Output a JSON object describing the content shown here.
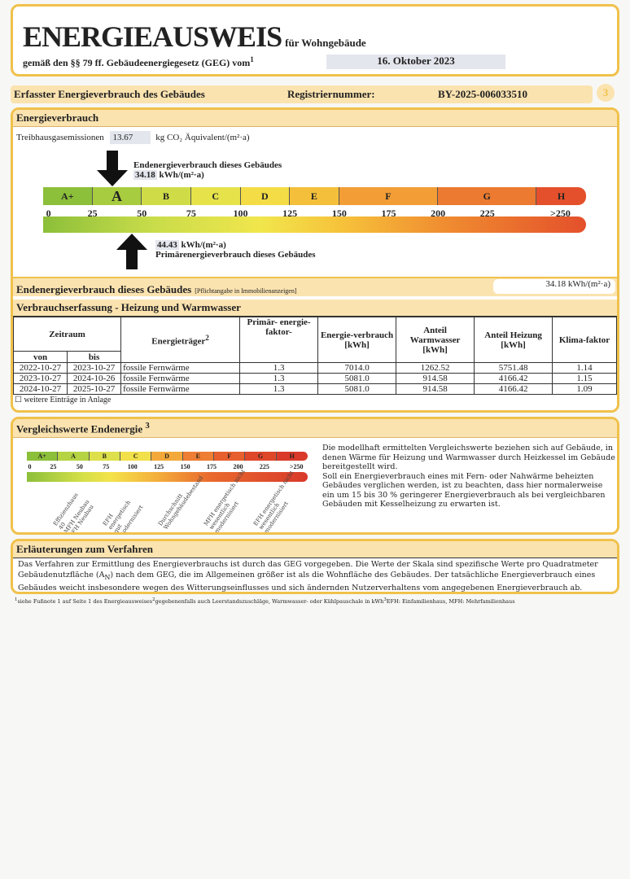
{
  "header": {
    "title": "ENERGIEAUSWEIS",
    "subtitle": "für Wohngebäude",
    "law": "gemäß den §§ 79 ff. Gebäudeenergiegesetz (GEG) vom",
    "law_sup": "1",
    "date": "16. Oktober 2023"
  },
  "bar": {
    "label": "Erfasster Energieverbrauch des Gebäudes",
    "reg_label": "Registriernummer:",
    "reg_value": "BY-2025-006033510",
    "page": "3"
  },
  "energy": {
    "title": "Energieverbrauch",
    "ghg_label": "Treibhausgasemissionen",
    "ghg_value": "13.67",
    "ghg_unit": "kg CO₂ Äquivalent/(m²·a)",
    "end_label": "Endenergieverbrauch dieses Gebäudes",
    "end_value": "34.18",
    "unit": "kWh/(m²·a)",
    "prim_value": "44.43",
    "prim_label": "Primärenergieverbrauch dieses Gebäudes",
    "classes": [
      "A+",
      "A",
      "B",
      "C",
      "D",
      "E",
      "F",
      "G",
      "H"
    ],
    "highlight_class": "A",
    "class_colors": [
      "#8cbf3a",
      "#a8cc3f",
      "#cfdc48",
      "#e6e24a",
      "#f3dc45",
      "#f4c03b",
      "#f29d36",
      "#ec7a30",
      "#e4502b"
    ],
    "ticks": [
      "0",
      "25",
      "50",
      "75",
      "100",
      "125",
      "150",
      "175",
      "200",
      "225",
      ">250"
    ],
    "end_energy_kwh": 34.18,
    "primary_energy_kwh": 44.43
  },
  "summary": {
    "label": "Endenergieverbrauch dieses Gebäudes",
    "note": "[Pflichtangabe in Immobilienanzeigen]",
    "value": "34.18 kWh/(m²·a)"
  },
  "consumption": {
    "title": "Verbrauchserfassung - Heizung und Warmwasser",
    "headers": {
      "period": "Zeitraum",
      "from": "von",
      "to": "bis",
      "carrier": "Energieträger",
      "carrier_sup": "2",
      "factor": "Primär- energie-faktor-",
      "consumption": "Energie-verbrauch [kWh]",
      "water": "Anteil Warmwasser [kWh]",
      "heating": "Anteil Heizung [kWh]",
      "climate": "Klima-faktor"
    },
    "rows": [
      [
        "2022-10-27",
        "2023-10-27",
        "fossile Fernwärme",
        "1.3",
        "7014.0",
        "1262.52",
        "5751.48",
        "1.14"
      ],
      [
        "2023-10-27",
        "2024-10-26",
        "fossile Fernwärme",
        "1.3",
        "5081.0",
        "914.58",
        "4166.42",
        "1.15"
      ],
      [
        "2024-10-27",
        "2025-10-27",
        "fossile Fernwärme",
        "1.3",
        "5081.0",
        "914.58",
        "4166.42",
        "1.09"
      ]
    ],
    "more": "☐ weitere Einträge in Anlage"
  },
  "comparison": {
    "title": "Vergleichswerte Endenergie",
    "title_sup": "3",
    "class_colors": [
      "#8cbf3a",
      "#b5d343",
      "#dde04a",
      "#f2e04a",
      "#f3a93a",
      "#ee7e33",
      "#e85f2e",
      "#df472b",
      "#d93a2a"
    ],
    "labels": [
      {
        "value": 25,
        "text": "Effizienzhaus\n40\nMFH Neubau\nEFH Neubau"
      },
      {
        "value": 75,
        "text": "EFH\nenergetisch\ngut\nmodernisiert"
      },
      {
        "value": 130,
        "text": "Durchschnitt\nWohngebäudebestand"
      },
      {
        "value": 175,
        "text": "MFH energetisch nicht\nwesentlich\nmodernisiert"
      },
      {
        "value": 225,
        "text": "EFH energetisch nicht\nwesentlich\nmodernisiert"
      }
    ],
    "text": "Die modellhaft ermittelten Vergleichswerte beziehen sich auf Gebäude, in denen Wärme für Heizung und Warmwasser durch Heizkessel im Gebäude bereitgestellt wird.\nSoll ein Energieverbrauch eines mit Fern- oder Nahwärme beheizten Gebäudes verglichen werden, ist zu beachten, dass hier normalerweise ein um 15 bis 30 % geringerer Energieverbrauch als bei vergleichbaren Gebäuden mit Kesselheizung zu erwarten ist."
  },
  "explanation": {
    "title": "Erläuterungen zum Verfahren",
    "text1": "Das Verfahren zur Ermittlung des Energieverbrauchs ist durch das GEG vorgegeben. Die Werte der Skala sind spezifische Werte pro Quadratmeter Gebäudenutzfläche (A",
    "sub": "N",
    "text2": ") nach dem GEG, die im Allgemeinen größer ist als die Wohnfläche des Gebäudes. Der tatsächliche Energieverbrauch eines Gebäudes weicht insbesondere wegen des Witterungseinflusses und sich ändernden Nutzerverhaltens vom angegebenen Energieverbrauch ab."
  },
  "footnote": {
    "s1": "1",
    "t1": "siehe Fußnote 1 auf Seite 1 des Energieausweises",
    "s2": "2",
    "t2": "gegebenenfalls auch Leerstandszuschläge, Warmwasser- oder Kühlpauschale in kWh",
    "s3": "3",
    "t3": "EFH: Einfamilienhaus, MFH: Mehrfamilienhaus"
  }
}
